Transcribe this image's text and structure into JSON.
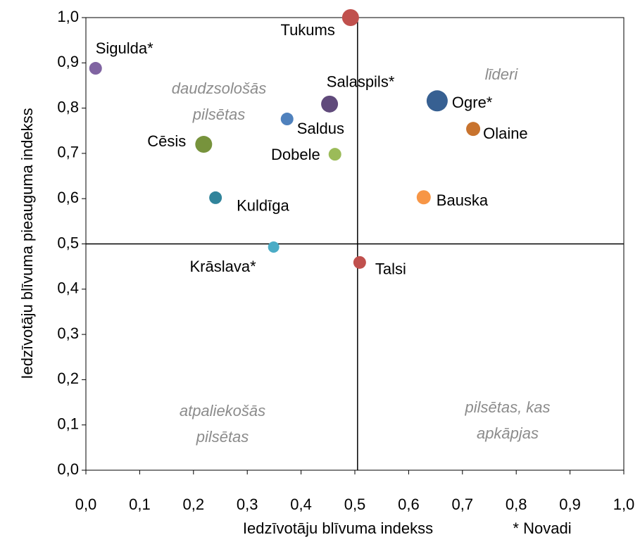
{
  "chart_data": {
    "type": "scatter",
    "xlabel": "Iedzīvotāju blīvuma indekss",
    "ylabel": "Iedzīvotāju blīvuma pieauguma indekss",
    "note": "* Novadi",
    "points": [
      {
        "name": "Sigulda*",
        "x": 0.018,
        "y": 0.888,
        "size": 9,
        "color": "#8064a2"
      },
      {
        "name": "Tukums",
        "x": 0.492,
        "y": 1.0,
        "size": 12,
        "color": "#c0504d"
      },
      {
        "name": "Salaspils*",
        "x": 0.453,
        "y": 0.809,
        "size": 12,
        "color": "#604a7b"
      },
      {
        "name": "Saldus",
        "x": 0.374,
        "y": 0.776,
        "size": 9,
        "color": "#4f81bd"
      },
      {
        "name": "Ogre*",
        "x": 0.653,
        "y": 0.816,
        "size": 15,
        "color": "#376092"
      },
      {
        "name": "Olaine",
        "x": 0.72,
        "y": 0.754,
        "size": 10,
        "color": "#c8732e"
      },
      {
        "name": "Cēsis",
        "x": 0.219,
        "y": 0.72,
        "size": 12,
        "color": "#77933c"
      },
      {
        "name": "Dobele",
        "x": 0.463,
        "y": 0.698,
        "size": 9,
        "color": "#9bbb59"
      },
      {
        "name": "Kuldīga",
        "x": 0.241,
        "y": 0.602,
        "size": 9,
        "color": "#31849b"
      },
      {
        "name": "Bauska",
        "x": 0.628,
        "y": 0.603,
        "size": 10,
        "color": "#f79646"
      },
      {
        "name": "Krāslava*",
        "x": 0.349,
        "y": 0.493,
        "size": 8,
        "color": "#4bacc6"
      },
      {
        "name": "Talsi",
        "x": 0.509,
        "y": 0.459,
        "size": 9,
        "color": "#c0504d"
      }
    ],
    "reference_lines": {
      "x": 0.505,
      "y": 0.5
    },
    "quadrant_labels": [
      {
        "lines": [
          "daudzsološās",
          "pilsētas"
        ]
      },
      {
        "lines": [
          "līderi"
        ]
      },
      {
        "lines": [
          "atpaliekošās",
          "pilsētas"
        ]
      },
      {
        "lines": [
          "pilsētas, kas",
          "apkāpjas"
        ]
      }
    ],
    "xlim": [
      0,
      1
    ],
    "ylim": [
      0,
      1
    ],
    "xticks": [
      {
        "value": 0,
        "label": "0,0"
      },
      {
        "value": 0.1,
        "label": "0,1"
      },
      {
        "value": 0.2,
        "label": "0,2"
      },
      {
        "value": 0.3,
        "label": "0,3"
      },
      {
        "value": 0.4,
        "label": "0,4"
      },
      {
        "value": 0.5,
        "label": "0,5"
      },
      {
        "value": 0.6,
        "label": "0,6"
      },
      {
        "value": 0.7,
        "label": "0,7"
      },
      {
        "value": 0.8,
        "label": "0,8"
      },
      {
        "value": 0.9,
        "label": "0,9"
      },
      {
        "value": 1,
        "label": "1,0"
      }
    ],
    "yticks": [
      {
        "value": 0,
        "label": "0,0"
      },
      {
        "value": 0.1,
        "label": "0,1"
      },
      {
        "value": 0.2,
        "label": "0,2"
      },
      {
        "value": 0.3,
        "label": "0,3"
      },
      {
        "value": 0.4,
        "label": "0,4"
      },
      {
        "value": 0.5,
        "label": "0,5"
      },
      {
        "value": 0.6,
        "label": "0,6"
      },
      {
        "value": 0.7,
        "label": "0,7"
      },
      {
        "value": 0.8,
        "label": "0,8"
      },
      {
        "value": 0.9,
        "label": "0,9"
      },
      {
        "value": 1,
        "label": "1,0"
      }
    ]
  }
}
